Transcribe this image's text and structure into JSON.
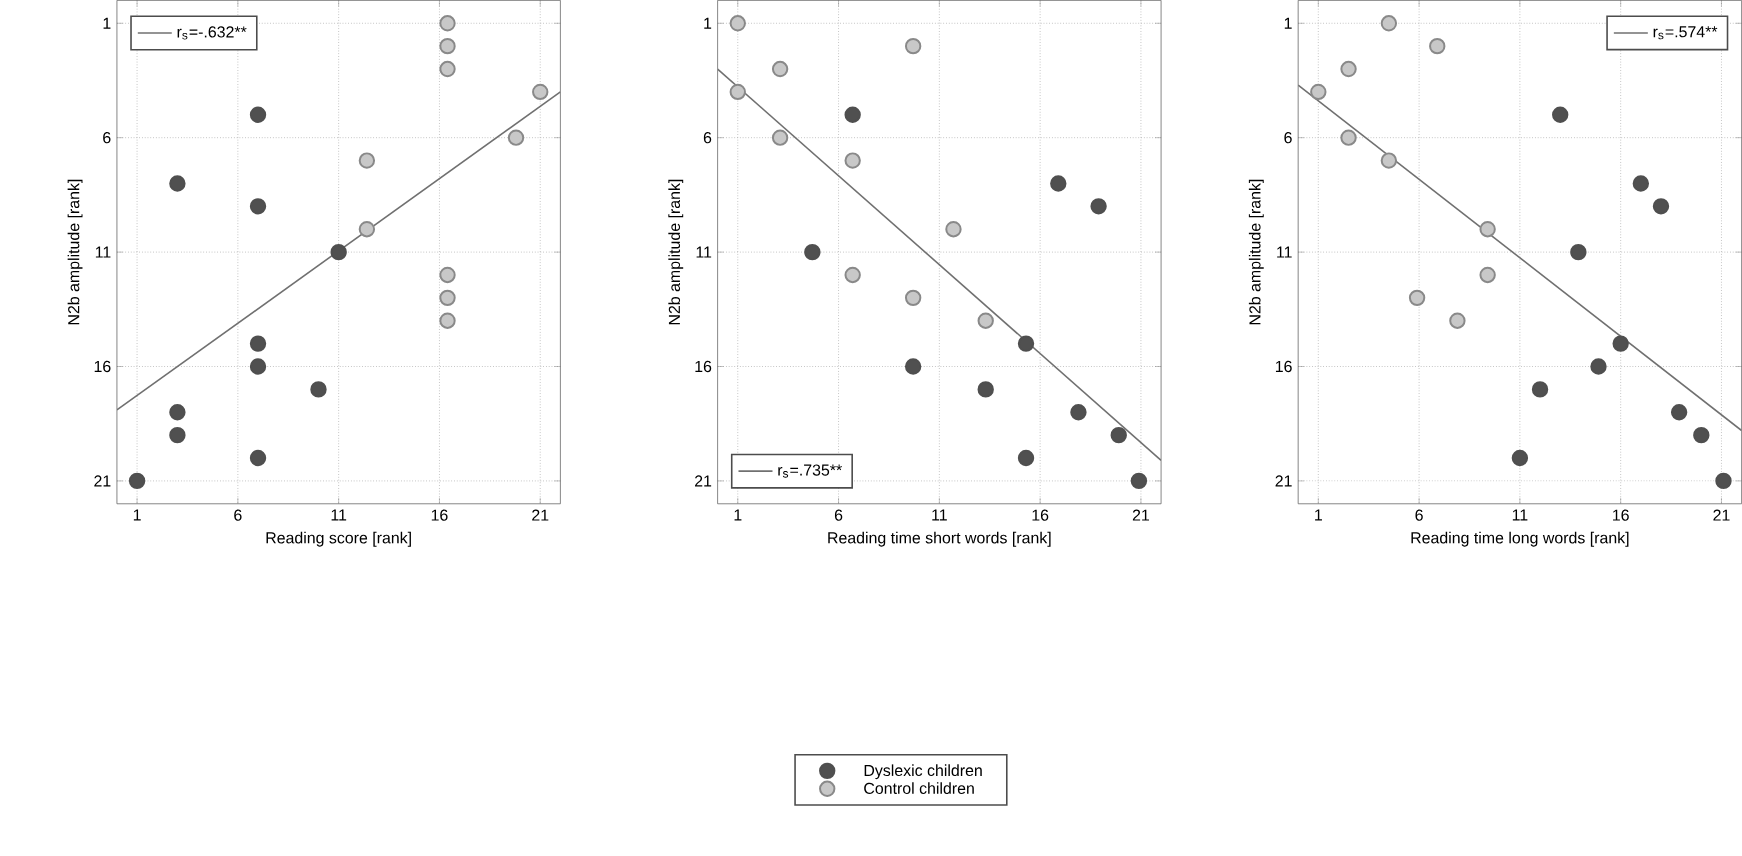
{
  "chart_data": [
    {
      "type": "scatter",
      "xlabel": "Reading score [rank]",
      "ylabel": "N2b amplitude [rank]",
      "xlim": [
        0,
        22
      ],
      "ylim": [
        22,
        0
      ],
      "xticks": [
        1,
        6,
        11,
        16,
        21
      ],
      "yticks": [
        1,
        6,
        11,
        16,
        21
      ],
      "grid": true,
      "marker": "circle",
      "legend": "top left",
      "series": [
        {
          "color": "#505050",
          "x": [
            7,
            3,
            7,
            11,
            7,
            7,
            10,
            3,
            3,
            7,
            1
          ],
          "values": [
            5,
            8,
            9,
            11,
            15,
            16,
            17,
            18,
            19,
            20,
            21
          ]
        },
        {
          "color": "#c8c8c8",
          "x": [
            16.4,
            16.4,
            16.4,
            21,
            19.8,
            12.4,
            12.4,
            16.4,
            16.4,
            16.4
          ],
          "values": [
            1,
            2,
            3,
            4,
            6,
            7,
            10,
            12,
            13,
            14
          ]
        },
        {
          "type": "line",
          "marker": "none",
          "name": "r$_{s}$=-.632**",
          "color": "#707070",
          "x": [
            0,
            22
          ],
          "values": [
            17.9,
            4
          ]
        }
      ]
    },
    {
      "type": "scatter",
      "xlabel": "Reading time short words [rank]",
      "ylabel": "N2b amplitude [rank]",
      "xlim": [
        0,
        22
      ],
      "ylim": [
        22,
        0
      ],
      "xticks": [
        1,
        6,
        11,
        16,
        21
      ],
      "yticks": [
        1,
        6,
        11,
        16,
        21
      ],
      "grid": true,
      "marker": "circle",
      "legend": "bottom left",
      "series": [
        {
          "name": "Dyslexic children",
          "color": "#505050",
          "x": [
            6.7,
            4.7,
            16.9,
            18.9,
            15.3,
            9.7,
            13.3,
            17.9,
            19.9,
            15.3,
            20.9
          ],
          "values": [
            5,
            11,
            8,
            9,
            15,
            16,
            17,
            18,
            19,
            20,
            21
          ]
        },
        {
          "name": "Control children",
          "color": "#c8c8c8",
          "x": [
            1,
            9.7,
            3.1,
            1,
            3.1,
            6.7,
            11.7,
            6.7,
            9.7,
            13.3
          ],
          "values": [
            1,
            2,
            3,
            4,
            6,
            7,
            10,
            12,
            13,
            14
          ]
        },
        {
          "type": "line",
          "marker": "none",
          "name": "r$_{s}$=.735**",
          "color": "#707070",
          "x": [
            0,
            22
          ],
          "values": [
            3,
            20.1
          ]
        }
      ]
    },
    {
      "type": "scatter",
      "xlabel": "Reading time long words [rank]",
      "ylabel": "N2b amplitude [rank]",
      "xlim": [
        0,
        22
      ],
      "ylim": [
        22,
        0
      ],
      "xticks": [
        1,
        6,
        11,
        16,
        21
      ],
      "yticks": [
        1,
        6,
        11,
        16,
        21
      ],
      "grid": true,
      "marker": "circle",
      "legend": "top right",
      "series": [
        {
          "color": "#505050",
          "x": [
            13,
            17,
            18,
            13.9,
            16,
            14.9,
            12,
            18.9,
            20,
            11,
            21.1
          ],
          "values": [
            5,
            8,
            9,
            11,
            15,
            16,
            17,
            18,
            19,
            20,
            21
          ]
        },
        {
          "color": "#c8c8c8",
          "x": [
            1,
            2.5,
            4.5,
            6.9,
            2.5,
            4.5,
            9.4,
            9.4,
            5.9,
            7.9
          ],
          "values": [
            4,
            3,
            1,
            2,
            6,
            7,
            10,
            12,
            13,
            14
          ]
        },
        {
          "type": "line",
          "marker": "none",
          "name": "r$_{s}$=.574**",
          "color": "#707070",
          "x": [
            0,
            22
          ],
          "values": [
            3.7,
            18.8
          ]
        }
      ]
    }
  ]
}
